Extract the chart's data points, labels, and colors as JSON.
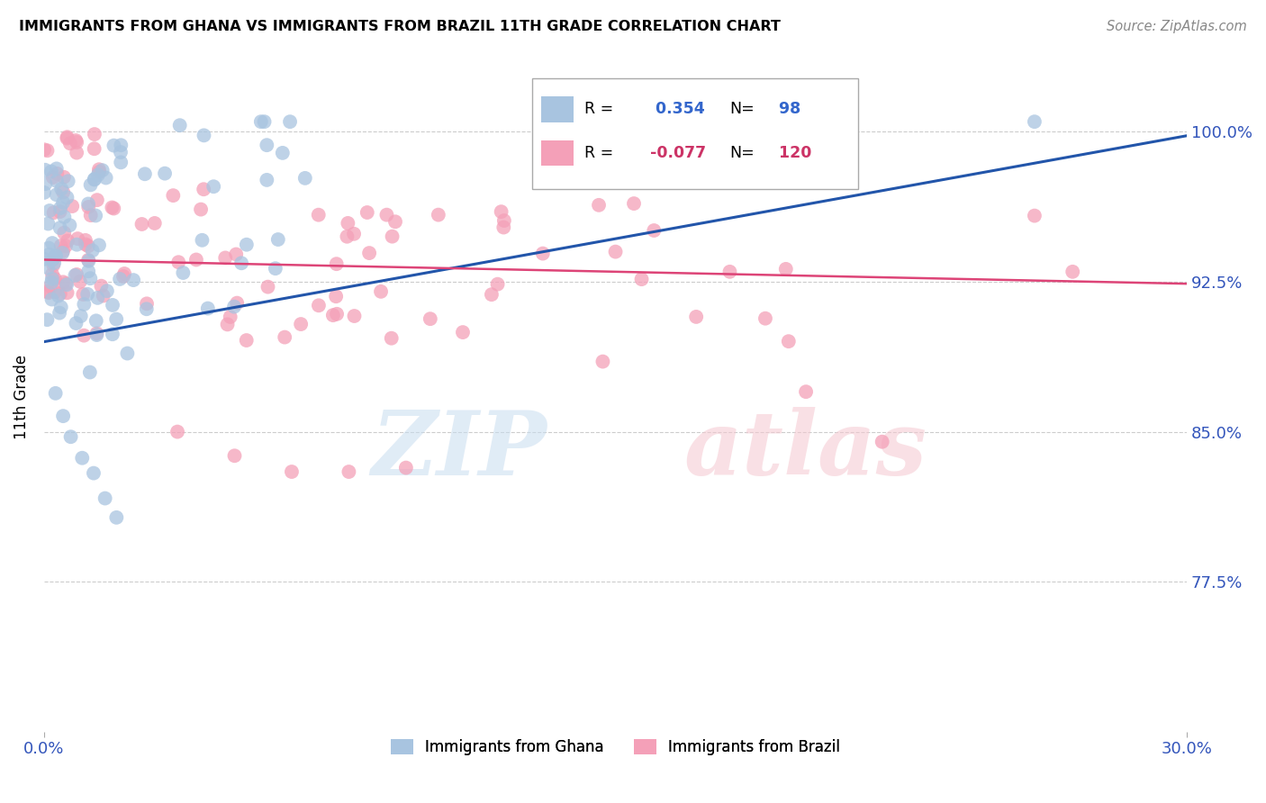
{
  "title": "IMMIGRANTS FROM GHANA VS IMMIGRANTS FROM BRAZIL 11TH GRADE CORRELATION CHART",
  "source": "Source: ZipAtlas.com",
  "ylabel": "11th Grade",
  "yticks": [
    "77.5%",
    "85.0%",
    "92.5%",
    "100.0%"
  ],
  "ytick_vals": [
    0.775,
    0.85,
    0.925,
    1.0
  ],
  "xlim": [
    0.0,
    0.3
  ],
  "ylim": [
    0.7,
    1.035
  ],
  "ghana_color": "#a8c4e0",
  "brazil_color": "#f4a0b8",
  "ghana_line_color": "#2255aa",
  "brazil_line_color": "#dd4477",
  "ghana_r": 0.354,
  "ghana_n": 98,
  "brazil_r": -0.077,
  "brazil_n": 120,
  "legend_label_ghana": "Immigrants from Ghana",
  "legend_label_brazil": "Immigrants from Brazil",
  "watermark_zip": "ZIP",
  "watermark_atlas": "atlas",
  "r_color_ghana": "#3366cc",
  "r_color_brazil": "#cc3366",
  "n_color_ghana": "#3366cc",
  "n_color_brazil": "#cc3366"
}
